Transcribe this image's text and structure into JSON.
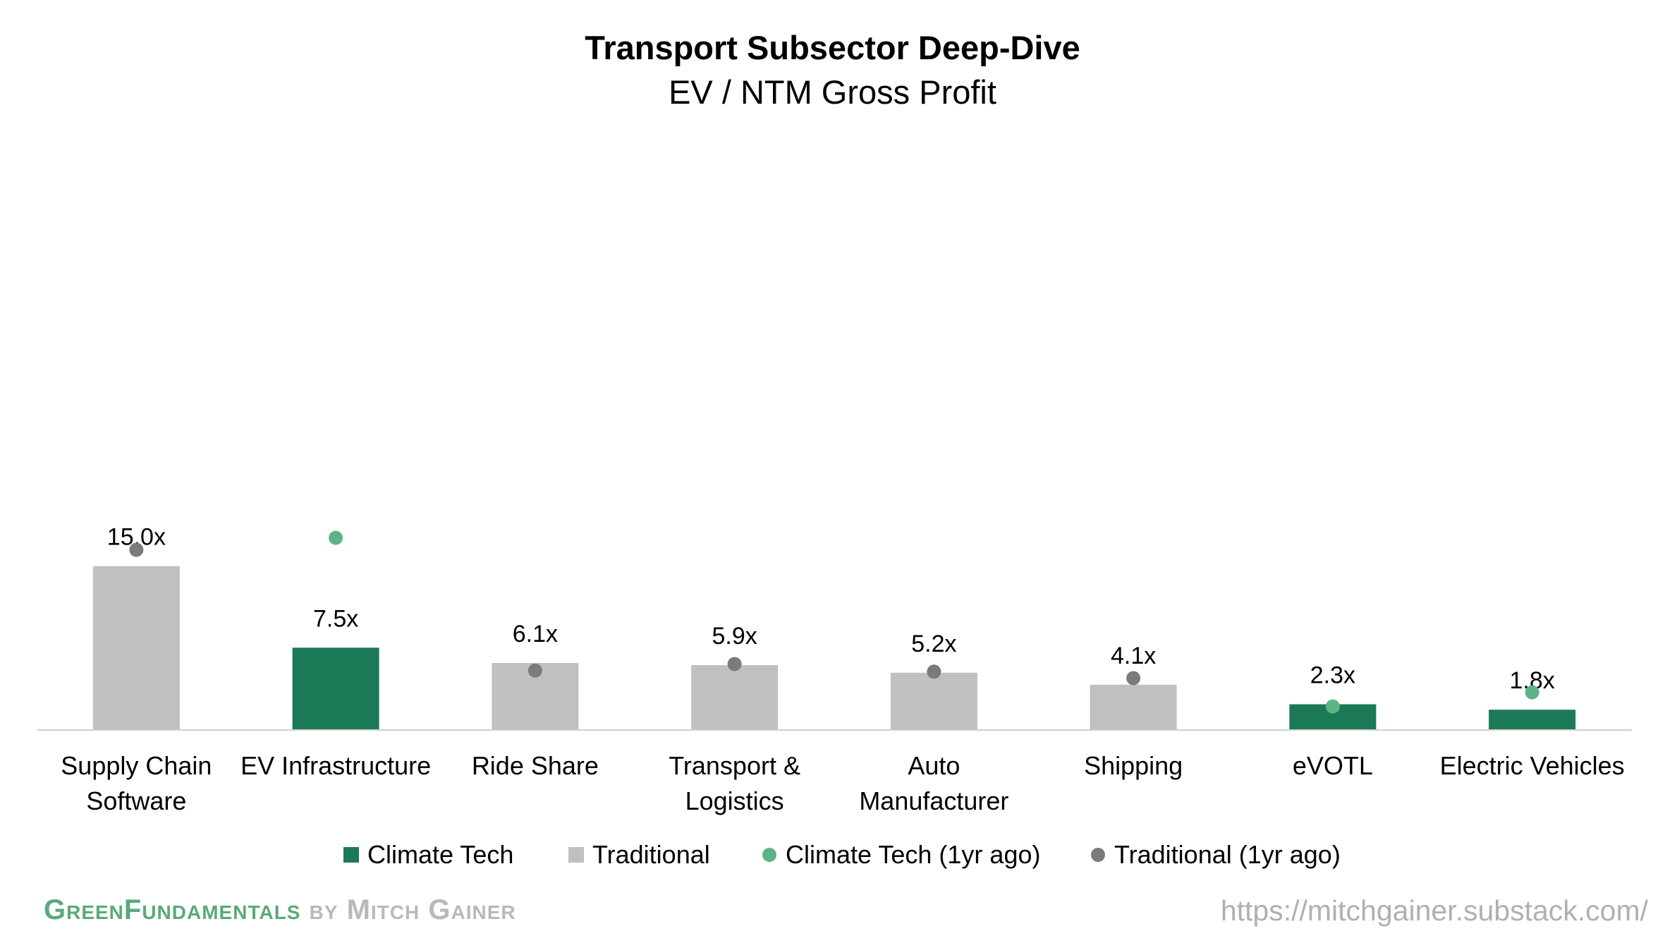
{
  "chart_data": {
    "type": "bar",
    "title": "Transport Subsector Deep-Dive",
    "subtitle": "EV / NTM Gross Profit",
    "categories": [
      "Supply Chain Software",
      "EV Infrastructure",
      "Ride Share",
      "Transport & Logistics",
      "Auto Manufacturer",
      "Shipping",
      "eVOTL",
      "Electric Vehicles"
    ],
    "category_label_lines": [
      [
        "Supply Chain",
        "Software"
      ],
      [
        "EV Infrastructure"
      ],
      [
        "Ride Share"
      ],
      [
        "Transport &",
        "Logistics"
      ],
      [
        "Auto",
        "Manufacturer"
      ],
      [
        "Shipping"
      ],
      [
        "eVOTL"
      ],
      [
        "Electric Vehicles"
      ]
    ],
    "values": [
      15.0,
      7.5,
      6.1,
      5.9,
      5.2,
      4.1,
      2.3,
      1.8
    ],
    "value_labels": [
      "15.0x",
      "7.5x",
      "6.1x",
      "5.9x",
      "5.2x",
      "4.1x",
      "2.3x",
      "1.8x"
    ],
    "bar_series": [
      "Traditional",
      "Climate Tech",
      "Traditional",
      "Traditional",
      "Traditional",
      "Traditional",
      "Climate Tech",
      "Climate Tech"
    ],
    "prior_year": [
      16.5,
      17.6,
      5.4,
      6.0,
      5.3,
      4.7,
      2.1,
      3.4
    ],
    "prior_year_series": [
      "Traditional (1yr ago)",
      "Climate Tech (1yr ago)",
      "Traditional (1yr ago)",
      "Traditional (1yr ago)",
      "Traditional (1yr ago)",
      "Traditional (1yr ago)",
      "Climate Tech (1yr ago)",
      "Climate Tech (1yr ago)"
    ],
    "ylim": [
      0,
      45
    ],
    "grid": false,
    "legend": {
      "placement": "bottom",
      "entries": [
        {
          "name": "Climate Tech",
          "marker": "square",
          "color": "#1b7a55"
        },
        {
          "name": "Traditional",
          "marker": "square",
          "color": "#c0c0c0"
        },
        {
          "name": "Climate Tech (1yr ago)",
          "marker": "circle",
          "color": "#5db485"
        },
        {
          "name": "Traditional (1yr ago)",
          "marker": "circle",
          "color": "#7b7b7b"
        }
      ]
    },
    "colors": {
      "Climate Tech": "#1b7a55",
      "Traditional": "#c0c0c0",
      "Climate Tech (1yr ago)": "#5db485",
      "Traditional (1yr ago)": "#7b7b7b",
      "axis": "#d0d0d0"
    }
  },
  "footer": {
    "brand_green": "GreenFundamentals",
    "brand_by": "by Mitch Gainer",
    "url": "https://mitchgainer.substack.com/"
  }
}
